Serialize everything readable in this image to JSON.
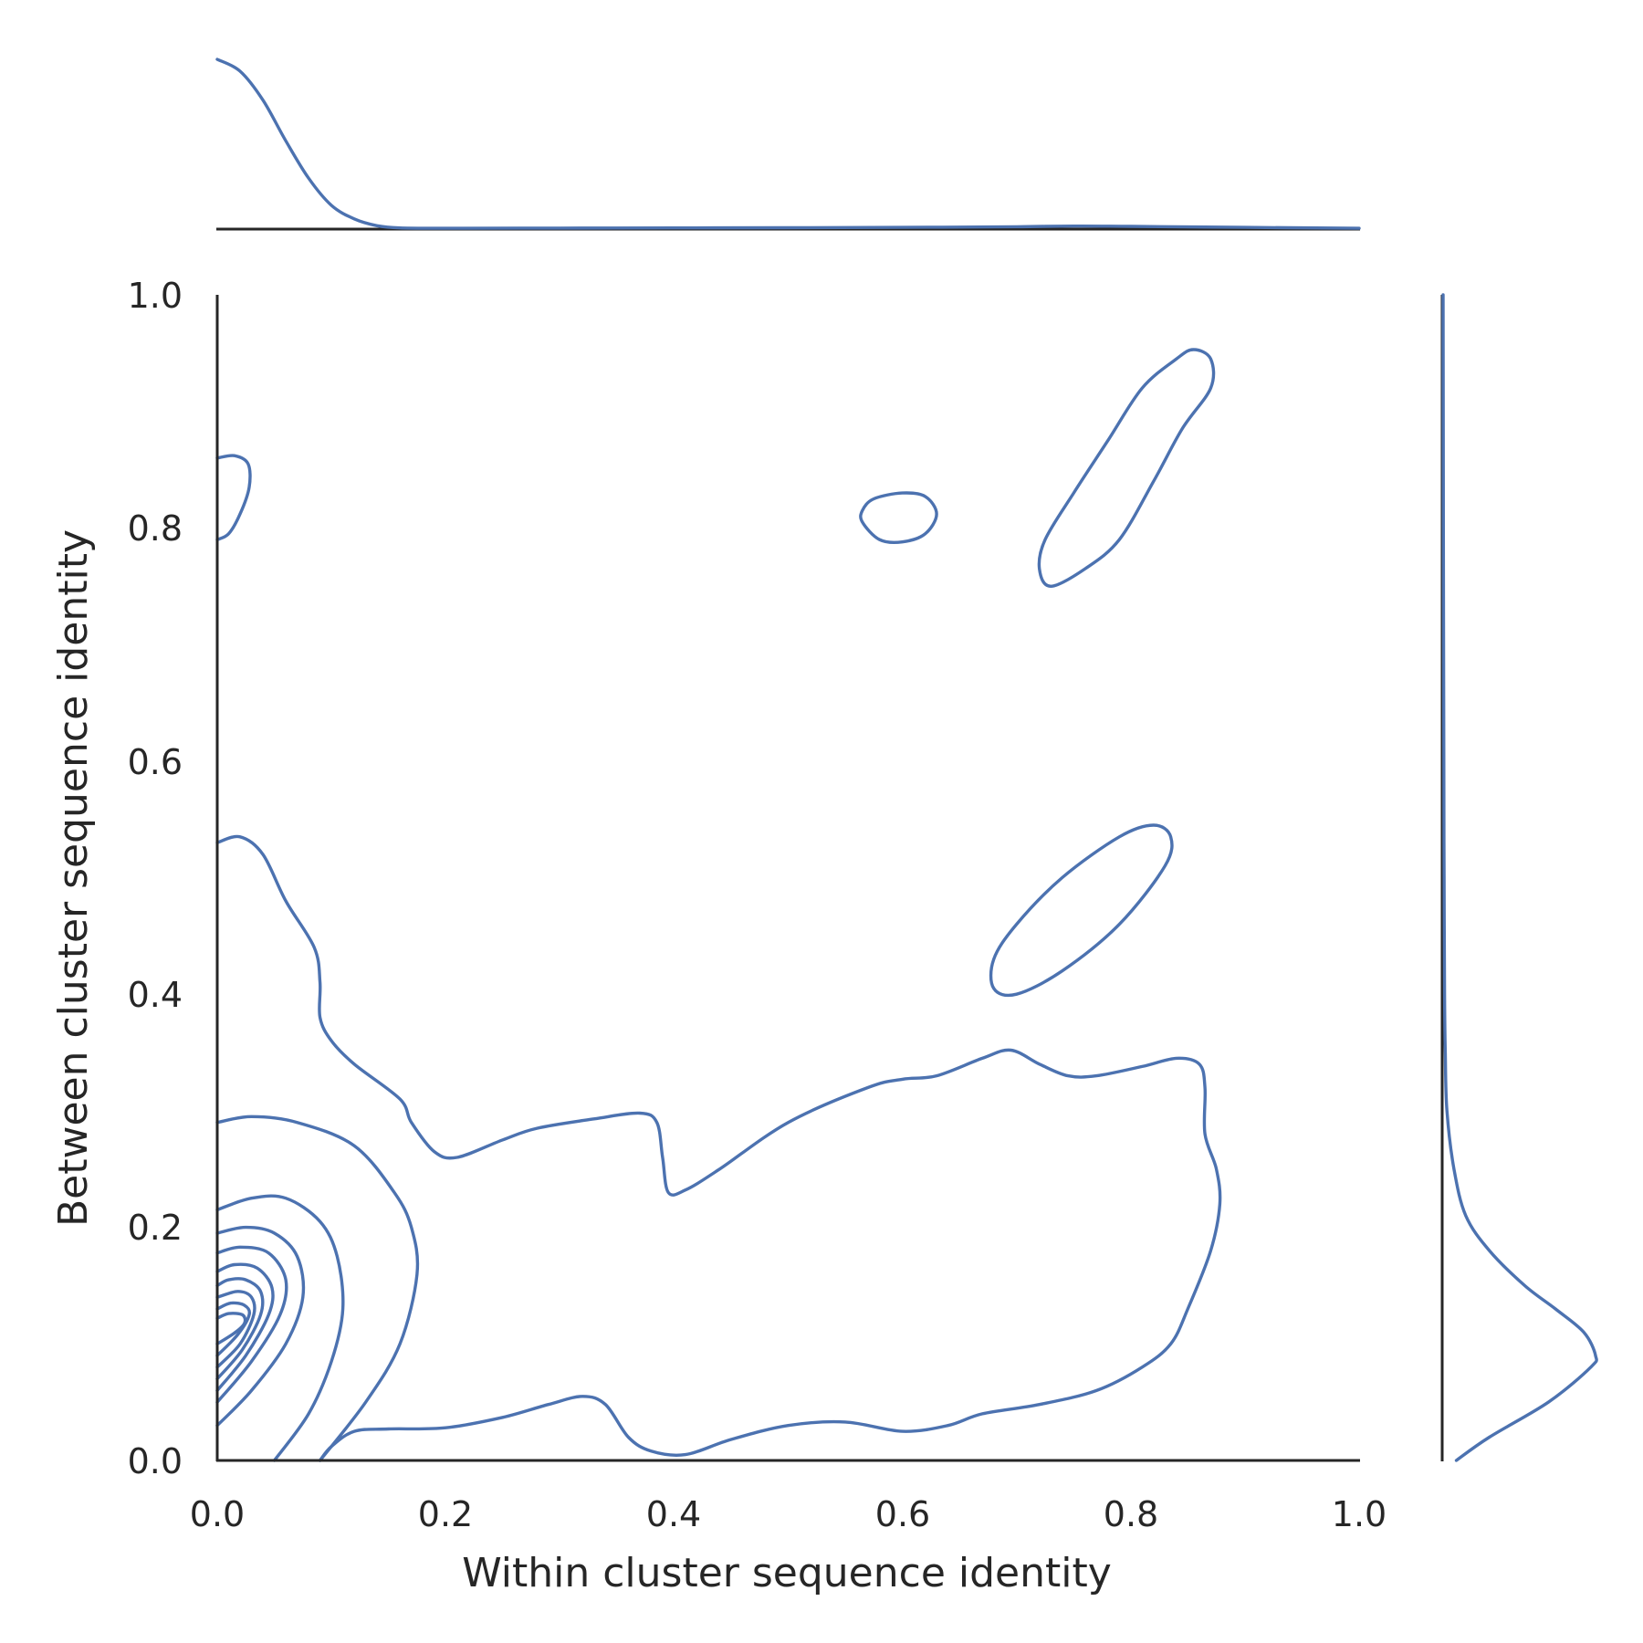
{
  "chart_data": {
    "type": "kde_joint",
    "xlabel": "Within cluster sequence identity",
    "ylabel": "Between cluster sequence identity",
    "xlim": [
      0.0,
      1.0
    ],
    "ylim": [
      0.0,
      1.0
    ],
    "xticks": [
      "0.0",
      "0.2",
      "0.4",
      "0.6",
      "0.8",
      "1.0"
    ],
    "yticks": [
      "0.0",
      "0.2",
      "0.4",
      "0.6",
      "0.8",
      "1.0"
    ],
    "line_color": "#4c72b0",
    "contours": [
      {
        "name": "outer-level",
        "closed": false,
        "points": [
          [
            0.0,
            0.53
          ],
          [
            0.02,
            0.535
          ],
          [
            0.04,
            0.52
          ],
          [
            0.06,
            0.48
          ],
          [
            0.085,
            0.44
          ],
          [
            0.09,
            0.41
          ],
          [
            0.09,
            0.38
          ],
          [
            0.1,
            0.36
          ],
          [
            0.12,
            0.34
          ],
          [
            0.16,
            0.31
          ],
          [
            0.17,
            0.29
          ],
          [
            0.19,
            0.265
          ],
          [
            0.21,
            0.26
          ],
          [
            0.25,
            0.275
          ],
          [
            0.28,
            0.285
          ],
          [
            0.33,
            0.293
          ],
          [
            0.37,
            0.298
          ],
          [
            0.385,
            0.29
          ],
          [
            0.39,
            0.26
          ],
          [
            0.395,
            0.23
          ],
          [
            0.41,
            0.232
          ],
          [
            0.44,
            0.25
          ],
          [
            0.5,
            0.29
          ],
          [
            0.57,
            0.32
          ],
          [
            0.6,
            0.327
          ],
          [
            0.63,
            0.33
          ],
          [
            0.67,
            0.345
          ],
          [
            0.695,
            0.352
          ],
          [
            0.72,
            0.34
          ],
          [
            0.745,
            0.33
          ],
          [
            0.77,
            0.33
          ],
          [
            0.81,
            0.338
          ],
          [
            0.84,
            0.345
          ],
          [
            0.86,
            0.34
          ],
          [
            0.865,
            0.32
          ],
          [
            0.865,
            0.28
          ],
          [
            0.875,
            0.25
          ],
          [
            0.878,
            0.22
          ],
          [
            0.87,
            0.18
          ],
          [
            0.85,
            0.13
          ],
          [
            0.835,
            0.1
          ],
          [
            0.81,
            0.08
          ],
          [
            0.77,
            0.06
          ],
          [
            0.72,
            0.048
          ],
          [
            0.67,
            0.04
          ],
          [
            0.64,
            0.03
          ],
          [
            0.6,
            0.025
          ],
          [
            0.55,
            0.033
          ],
          [
            0.5,
            0.03
          ],
          [
            0.45,
            0.018
          ],
          [
            0.41,
            0.005
          ],
          [
            0.38,
            0.008
          ],
          [
            0.36,
            0.02
          ],
          [
            0.34,
            0.048
          ],
          [
            0.32,
            0.055
          ],
          [
            0.29,
            0.048
          ],
          [
            0.25,
            0.037
          ],
          [
            0.2,
            0.028
          ],
          [
            0.15,
            0.027
          ],
          [
            0.12,
            0.025
          ],
          [
            0.1,
            0.012
          ],
          [
            0.09,
            0.0
          ]
        ]
      },
      {
        "name": "left-top-blob",
        "closed": false,
        "points": [
          [
            0.0,
            0.79
          ],
          [
            0.01,
            0.795
          ],
          [
            0.02,
            0.812
          ],
          [
            0.028,
            0.835
          ],
          [
            0.027,
            0.855
          ],
          [
            0.015,
            0.862
          ],
          [
            0.0,
            0.86
          ]
        ]
      },
      {
        "name": "mid-top-ellipse",
        "closed": true,
        "points": [
          [
            0.565,
            0.805
          ],
          [
            0.58,
            0.79
          ],
          [
            0.6,
            0.788
          ],
          [
            0.62,
            0.795
          ],
          [
            0.63,
            0.812
          ],
          [
            0.62,
            0.827
          ],
          [
            0.6,
            0.83
          ],
          [
            0.575,
            0.825
          ],
          [
            0.565,
            0.815
          ]
        ]
      },
      {
        "name": "right-top-ellipse",
        "closed": true,
        "points": [
          [
            0.73,
            0.75
          ],
          [
            0.76,
            0.765
          ],
          [
            0.79,
            0.79
          ],
          [
            0.82,
            0.84
          ],
          [
            0.845,
            0.885
          ],
          [
            0.87,
            0.92
          ],
          [
            0.87,
            0.945
          ],
          [
            0.855,
            0.953
          ],
          [
            0.84,
            0.945
          ],
          [
            0.81,
            0.92
          ],
          [
            0.78,
            0.875
          ],
          [
            0.75,
            0.83
          ],
          [
            0.725,
            0.79
          ],
          [
            0.72,
            0.765
          ]
        ]
      },
      {
        "name": "right-mid-ellipse",
        "closed": true,
        "points": [
          [
            0.68,
            0.405
          ],
          [
            0.7,
            0.4
          ],
          [
            0.74,
            0.42
          ],
          [
            0.79,
            0.46
          ],
          [
            0.83,
            0.51
          ],
          [
            0.835,
            0.535
          ],
          [
            0.82,
            0.545
          ],
          [
            0.79,
            0.535
          ],
          [
            0.74,
            0.5
          ],
          [
            0.7,
            0.46
          ],
          [
            0.68,
            0.43
          ]
        ]
      },
      {
        "name": "inner-1",
        "closed": false,
        "points": [
          [
            0.09,
            0.0
          ],
          [
            0.13,
            0.05
          ],
          [
            0.16,
            0.1
          ],
          [
            0.175,
            0.16
          ],
          [
            0.17,
            0.2
          ],
          [
            0.155,
            0.23
          ],
          [
            0.12,
            0.27
          ],
          [
            0.07,
            0.29
          ],
          [
            0.03,
            0.295
          ],
          [
            0.0,
            0.29
          ]
        ]
      },
      {
        "name": "inner-2",
        "closed": false,
        "points": [
          [
            0.05,
            0.0
          ],
          [
            0.08,
            0.04
          ],
          [
            0.1,
            0.085
          ],
          [
            0.11,
            0.13
          ],
          [
            0.105,
            0.175
          ],
          [
            0.09,
            0.205
          ],
          [
            0.06,
            0.225
          ],
          [
            0.03,
            0.225
          ],
          [
            0.0,
            0.215
          ]
        ]
      },
      {
        "name": "inner-3",
        "closed": false,
        "points": [
          [
            0.0,
            0.03
          ],
          [
            0.03,
            0.06
          ],
          [
            0.06,
            0.1
          ],
          [
            0.075,
            0.14
          ],
          [
            0.07,
            0.175
          ],
          [
            0.05,
            0.195
          ],
          [
            0.025,
            0.2
          ],
          [
            0.0,
            0.195
          ]
        ]
      },
      {
        "name": "inner-4",
        "closed": false,
        "points": [
          [
            0.0,
            0.05
          ],
          [
            0.03,
            0.085
          ],
          [
            0.055,
            0.125
          ],
          [
            0.06,
            0.155
          ],
          [
            0.045,
            0.178
          ],
          [
            0.02,
            0.183
          ],
          [
            0.0,
            0.178
          ]
        ]
      },
      {
        "name": "inner-5",
        "closed": false,
        "points": [
          [
            0.0,
            0.06
          ],
          [
            0.025,
            0.09
          ],
          [
            0.045,
            0.125
          ],
          [
            0.048,
            0.148
          ],
          [
            0.035,
            0.165
          ],
          [
            0.015,
            0.168
          ],
          [
            0.0,
            0.162
          ]
        ]
      },
      {
        "name": "inner-6",
        "closed": false,
        "points": [
          [
            0.0,
            0.07
          ],
          [
            0.022,
            0.095
          ],
          [
            0.038,
            0.125
          ],
          [
            0.038,
            0.145
          ],
          [
            0.025,
            0.155
          ],
          [
            0.01,
            0.155
          ],
          [
            0.0,
            0.15
          ]
        ]
      },
      {
        "name": "inner-7",
        "closed": false,
        "points": [
          [
            0.0,
            0.08
          ],
          [
            0.02,
            0.1
          ],
          [
            0.032,
            0.125
          ],
          [
            0.03,
            0.14
          ],
          [
            0.018,
            0.145
          ],
          [
            0.0,
            0.14
          ]
        ]
      },
      {
        "name": "inner-8",
        "closed": false,
        "points": [
          [
            0.0,
            0.09
          ],
          [
            0.018,
            0.108
          ],
          [
            0.028,
            0.125
          ],
          [
            0.024,
            0.133
          ],
          [
            0.012,
            0.135
          ],
          [
            0.0,
            0.13
          ]
        ]
      },
      {
        "name": "inner-9",
        "closed": false,
        "points": [
          [
            0.0,
            0.1
          ],
          [
            0.016,
            0.11
          ],
          [
            0.024,
            0.118
          ],
          [
            0.022,
            0.125
          ],
          [
            0.01,
            0.126
          ],
          [
            0.0,
            0.122
          ]
        ]
      }
    ],
    "marginal_x": {
      "x": [
        0.0,
        0.02,
        0.04,
        0.06,
        0.08,
        0.1,
        0.12,
        0.14,
        0.16,
        0.2,
        0.3,
        0.4,
        0.5,
        0.6,
        0.7,
        0.75,
        0.8,
        0.9,
        1.0
      ],
      "density": [
        1.0,
        0.93,
        0.76,
        0.52,
        0.3,
        0.14,
        0.06,
        0.02,
        0.007,
        0.005,
        0.006,
        0.007,
        0.008,
        0.01,
        0.014,
        0.018,
        0.016,
        0.01,
        0.005
      ]
    },
    "marginal_y": {
      "y": [
        0.0,
        0.02,
        0.05,
        0.08,
        0.09,
        0.11,
        0.13,
        0.15,
        0.18,
        0.21,
        0.25,
        0.3,
        0.35,
        0.4,
        0.5,
        0.6,
        0.8,
        1.0
      ],
      "density": [
        0.06,
        0.2,
        0.45,
        0.63,
        0.65,
        0.6,
        0.48,
        0.35,
        0.2,
        0.1,
        0.05,
        0.02,
        0.013,
        0.01,
        0.008,
        0.007,
        0.005,
        0.004
      ]
    }
  }
}
